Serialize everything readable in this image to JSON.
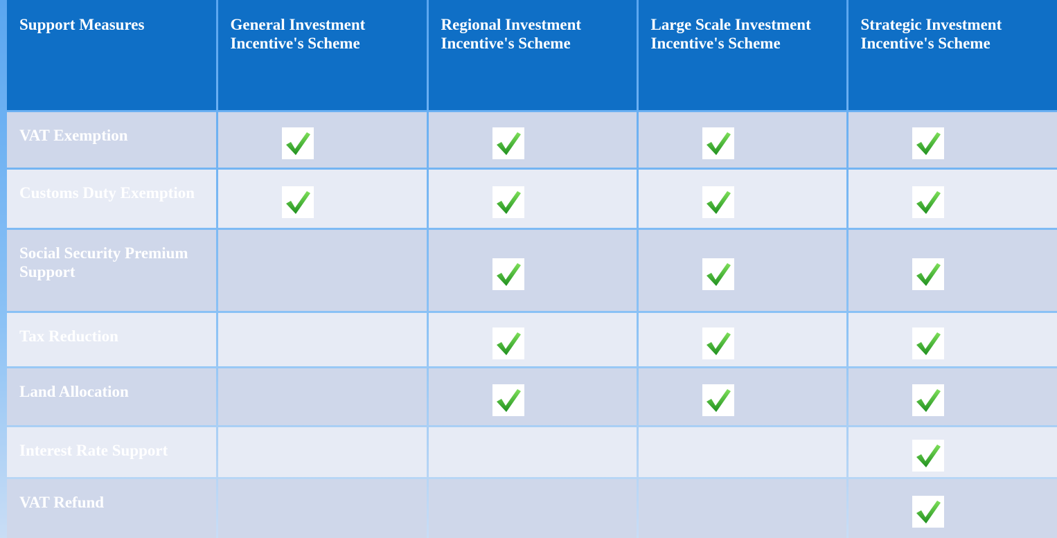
{
  "table": {
    "header": [
      "Support Measures",
      "General Investment Incentive's Scheme",
      "Regional Investment Incentive's Scheme",
      "Large Scale Investment Incentive's Scheme",
      "Strategic Investment Incentive's Scheme"
    ],
    "rows": [
      {
        "label": "VAT Exemption",
        "checks": [
          true,
          true,
          true,
          true
        ]
      },
      {
        "label": "Customs Duty Exemption",
        "checks": [
          true,
          true,
          true,
          true
        ]
      },
      {
        "label": "Social Security Premium Support",
        "checks": [
          false,
          true,
          true,
          true
        ]
      },
      {
        "label": "Tax Reduction",
        "checks": [
          false,
          true,
          true,
          true
        ]
      },
      {
        "label": "Land Allocation",
        "checks": [
          false,
          true,
          true,
          true
        ]
      },
      {
        "label": "Interest Rate Support",
        "checks": [
          false,
          false,
          false,
          true
        ]
      },
      {
        "label": "VAT Refund",
        "checks": [
          false,
          false,
          false,
          true
        ]
      }
    ]
  }
}
